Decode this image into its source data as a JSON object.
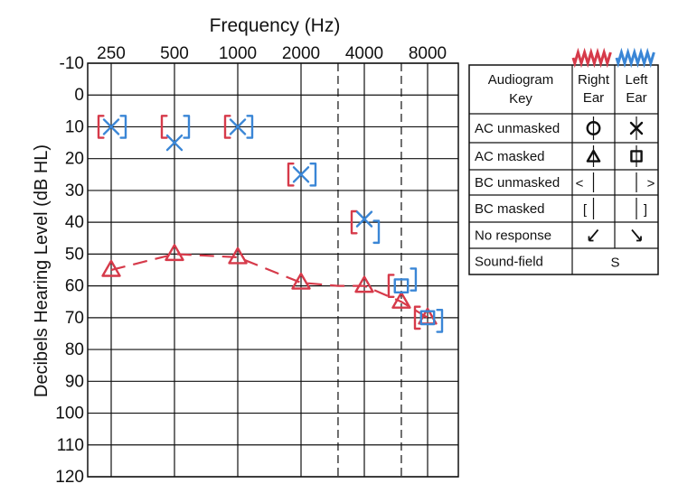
{
  "chart_data": {
    "type": "scatter",
    "title": "Frequency (Hz)",
    "xlabel": "Frequency (Hz)",
    "ylabel": "Decibels Hearing Level (dB HL)",
    "x_ticks": [
      "250",
      "500",
      "1000",
      "2000",
      "4000",
      "8000"
    ],
    "x_values": [
      250,
      500,
      1000,
      2000,
      4000,
      8000
    ],
    "x_interoctave_dashed": [
      3000,
      6000
    ],
    "x_scale": "log",
    "y_ticks": [
      "-10",
      "0",
      "10",
      "20",
      "30",
      "40",
      "50",
      "60",
      "70",
      "80",
      "90",
      "100",
      "110",
      "120"
    ],
    "ylim": [
      -10,
      120
    ],
    "y_inverted": true,
    "grid": true,
    "series": [
      {
        "name": "Right Ear AC masked",
        "symbol": "triangle",
        "color": "#d63a4a",
        "connected": true,
        "line_style": "dashed",
        "points": [
          [
            250,
            55
          ],
          [
            500,
            50
          ],
          [
            1000,
            51
          ],
          [
            2000,
            59
          ],
          [
            3000,
            60
          ],
          [
            4000,
            60
          ],
          [
            6000,
            65
          ],
          [
            8000,
            70
          ]
        ]
      },
      {
        "name": "Right Ear BC masked",
        "symbol": "[",
        "color": "#d63a4a",
        "points": [
          [
            250,
            10
          ],
          [
            500,
            10
          ],
          [
            1000,
            10
          ],
          [
            2000,
            25
          ],
          [
            4000,
            40
          ],
          [
            6000,
            60
          ],
          [
            8000,
            70
          ]
        ]
      },
      {
        "name": "Left Ear AC unmasked",
        "symbol": "x",
        "color": "#3a86d6",
        "points": [
          [
            250,
            10
          ],
          [
            500,
            15
          ],
          [
            1000,
            10
          ],
          [
            2000,
            25
          ],
          [
            4000,
            39
          ]
        ]
      },
      {
        "name": "Left Ear AC masked",
        "symbol": "square",
        "color": "#3a86d6",
        "points": [
          [
            6000,
            60
          ],
          [
            8000,
            70
          ]
        ]
      },
      {
        "name": "Left Ear BC masked",
        "symbol": "]",
        "color": "#3a86d6",
        "points": [
          [
            250,
            10
          ],
          [
            500,
            10
          ],
          [
            1000,
            10
          ],
          [
            2000,
            25
          ],
          [
            4000,
            43
          ],
          [
            6000,
            58
          ],
          [
            8000,
            71
          ]
        ]
      }
    ]
  },
  "key": {
    "header_title": "Audiogram Key",
    "header_right": "Right Ear",
    "header_left": "Left Ear",
    "rows": [
      {
        "label": "AC unmasked",
        "right_symbol": "circle",
        "left_symbol": "x"
      },
      {
        "label": "AC masked",
        "right_symbol": "triangle",
        "left_symbol": "square"
      },
      {
        "label": "BC unmasked",
        "right_symbol": "<",
        "left_symbol": ">"
      },
      {
        "label": "BC masked",
        "right_symbol": "[",
        "left_symbol": "]"
      },
      {
        "label": "No response",
        "right_symbol": "arrow-down-left",
        "left_symbol": "arrow-down-right"
      },
      {
        "label": "Sound-field",
        "both_symbol": "S"
      }
    ],
    "right_color": "#d63a4a",
    "left_color": "#3a86d6"
  }
}
